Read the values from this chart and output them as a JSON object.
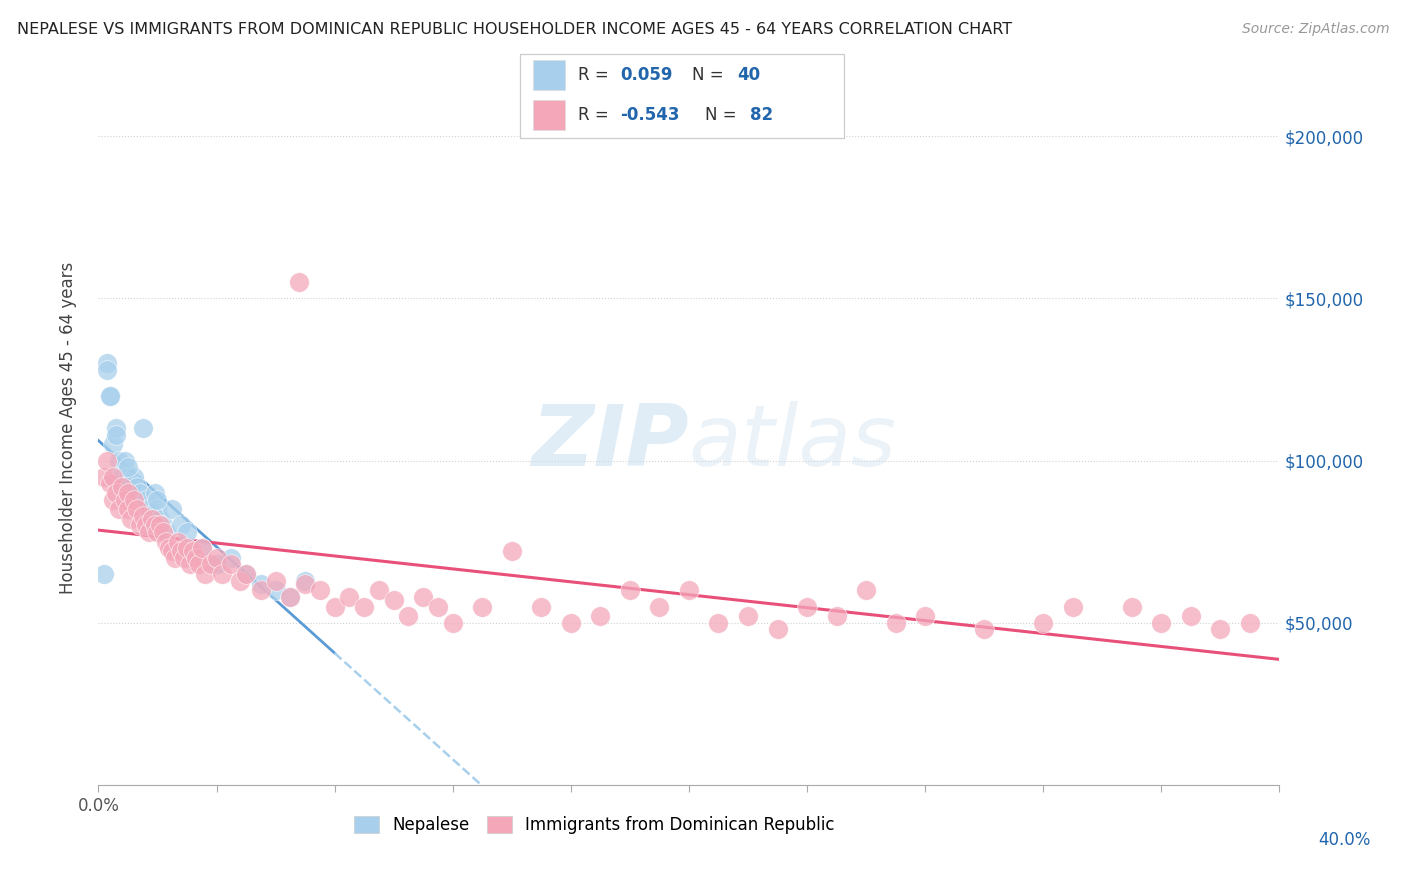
{
  "title": "NEPALESE VS IMMIGRANTS FROM DOMINICAN REPUBLIC HOUSEHOLDER INCOME AGES 45 - 64 YEARS CORRELATION CHART",
  "source": "Source: ZipAtlas.com",
  "ylabel": "Householder Income Ages 45 - 64 years",
  "xlim": [
    0.0,
    40.0
  ],
  "ylim": [
    0,
    220000
  ],
  "legend_label1": "Nepalese",
  "legend_label2": "Immigrants from Dominican Republic",
  "blue_color": "#a8d0ec",
  "pink_color": "#f4a7b9",
  "blue_line_color": "#5b9bd5",
  "blue_dash_color": "#a8d0ec",
  "pink_line_color": "#e8507a",
  "r_color": "#2166ac",
  "watermark": "ZIPatlas",
  "nep_x": [
    0.2,
    0.3,
    0.4,
    0.5,
    0.5,
    0.6,
    0.7,
    0.8,
    0.9,
    1.0,
    1.1,
    1.2,
    1.3,
    1.4,
    1.5,
    1.6,
    1.7,
    1.8,
    1.9,
    2.0,
    2.1,
    2.2,
    2.3,
    2.5,
    2.8,
    3.0,
    3.5,
    4.0,
    4.5,
    5.0,
    5.5,
    6.0,
    6.5,
    7.0,
    0.4,
    0.6,
    1.0,
    2.0,
    4.0,
    0.3
  ],
  "nep_y": [
    65000,
    130000,
    120000,
    105000,
    95000,
    110000,
    100000,
    95000,
    100000,
    95000,
    93000,
    95000,
    92000,
    90000,
    110000,
    88000,
    85000,
    83000,
    90000,
    85000,
    82000,
    80000,
    78000,
    85000,
    80000,
    78000,
    73000,
    68000,
    70000,
    65000,
    62000,
    60000,
    58000,
    63000,
    120000,
    108000,
    98000,
    88000,
    68000,
    128000
  ],
  "dom_x": [
    0.2,
    0.3,
    0.4,
    0.5,
    0.5,
    0.6,
    0.7,
    0.8,
    0.9,
    1.0,
    1.0,
    1.1,
    1.2,
    1.3,
    1.4,
    1.5,
    1.6,
    1.7,
    1.8,
    1.9,
    2.0,
    2.1,
    2.2,
    2.3,
    2.4,
    2.5,
    2.6,
    2.7,
    2.8,
    2.9,
    3.0,
    3.1,
    3.2,
    3.3,
    3.4,
    3.5,
    3.6,
    3.8,
    4.0,
    4.2,
    4.5,
    4.8,
    5.0,
    5.5,
    6.0,
    6.5,
    7.0,
    7.5,
    8.0,
    8.5,
    9.0,
    9.5,
    10.0,
    10.5,
    11.0,
    11.5,
    12.0,
    13.0,
    14.0,
    15.0,
    16.0,
    17.0,
    18.0,
    19.0,
    20.0,
    21.0,
    22.0,
    23.0,
    24.0,
    25.0,
    26.0,
    27.0,
    28.0,
    30.0,
    32.0,
    33.0,
    35.0,
    36.0,
    37.0,
    38.0,
    39.0,
    6.8
  ],
  "dom_y": [
    95000,
    100000,
    93000,
    95000,
    88000,
    90000,
    85000,
    92000,
    88000,
    90000,
    85000,
    82000,
    88000,
    85000,
    80000,
    83000,
    80000,
    78000,
    82000,
    80000,
    78000,
    80000,
    78000,
    75000,
    73000,
    72000,
    70000,
    75000,
    72000,
    70000,
    73000,
    68000,
    72000,
    70000,
    68000,
    73000,
    65000,
    68000,
    70000,
    65000,
    68000,
    63000,
    65000,
    60000,
    63000,
    58000,
    62000,
    60000,
    55000,
    58000,
    55000,
    60000,
    57000,
    52000,
    58000,
    55000,
    50000,
    55000,
    72000,
    55000,
    50000,
    52000,
    60000,
    55000,
    60000,
    50000,
    52000,
    48000,
    55000,
    52000,
    60000,
    50000,
    52000,
    48000,
    50000,
    55000,
    55000,
    50000,
    52000,
    48000,
    50000,
    155000
  ]
}
